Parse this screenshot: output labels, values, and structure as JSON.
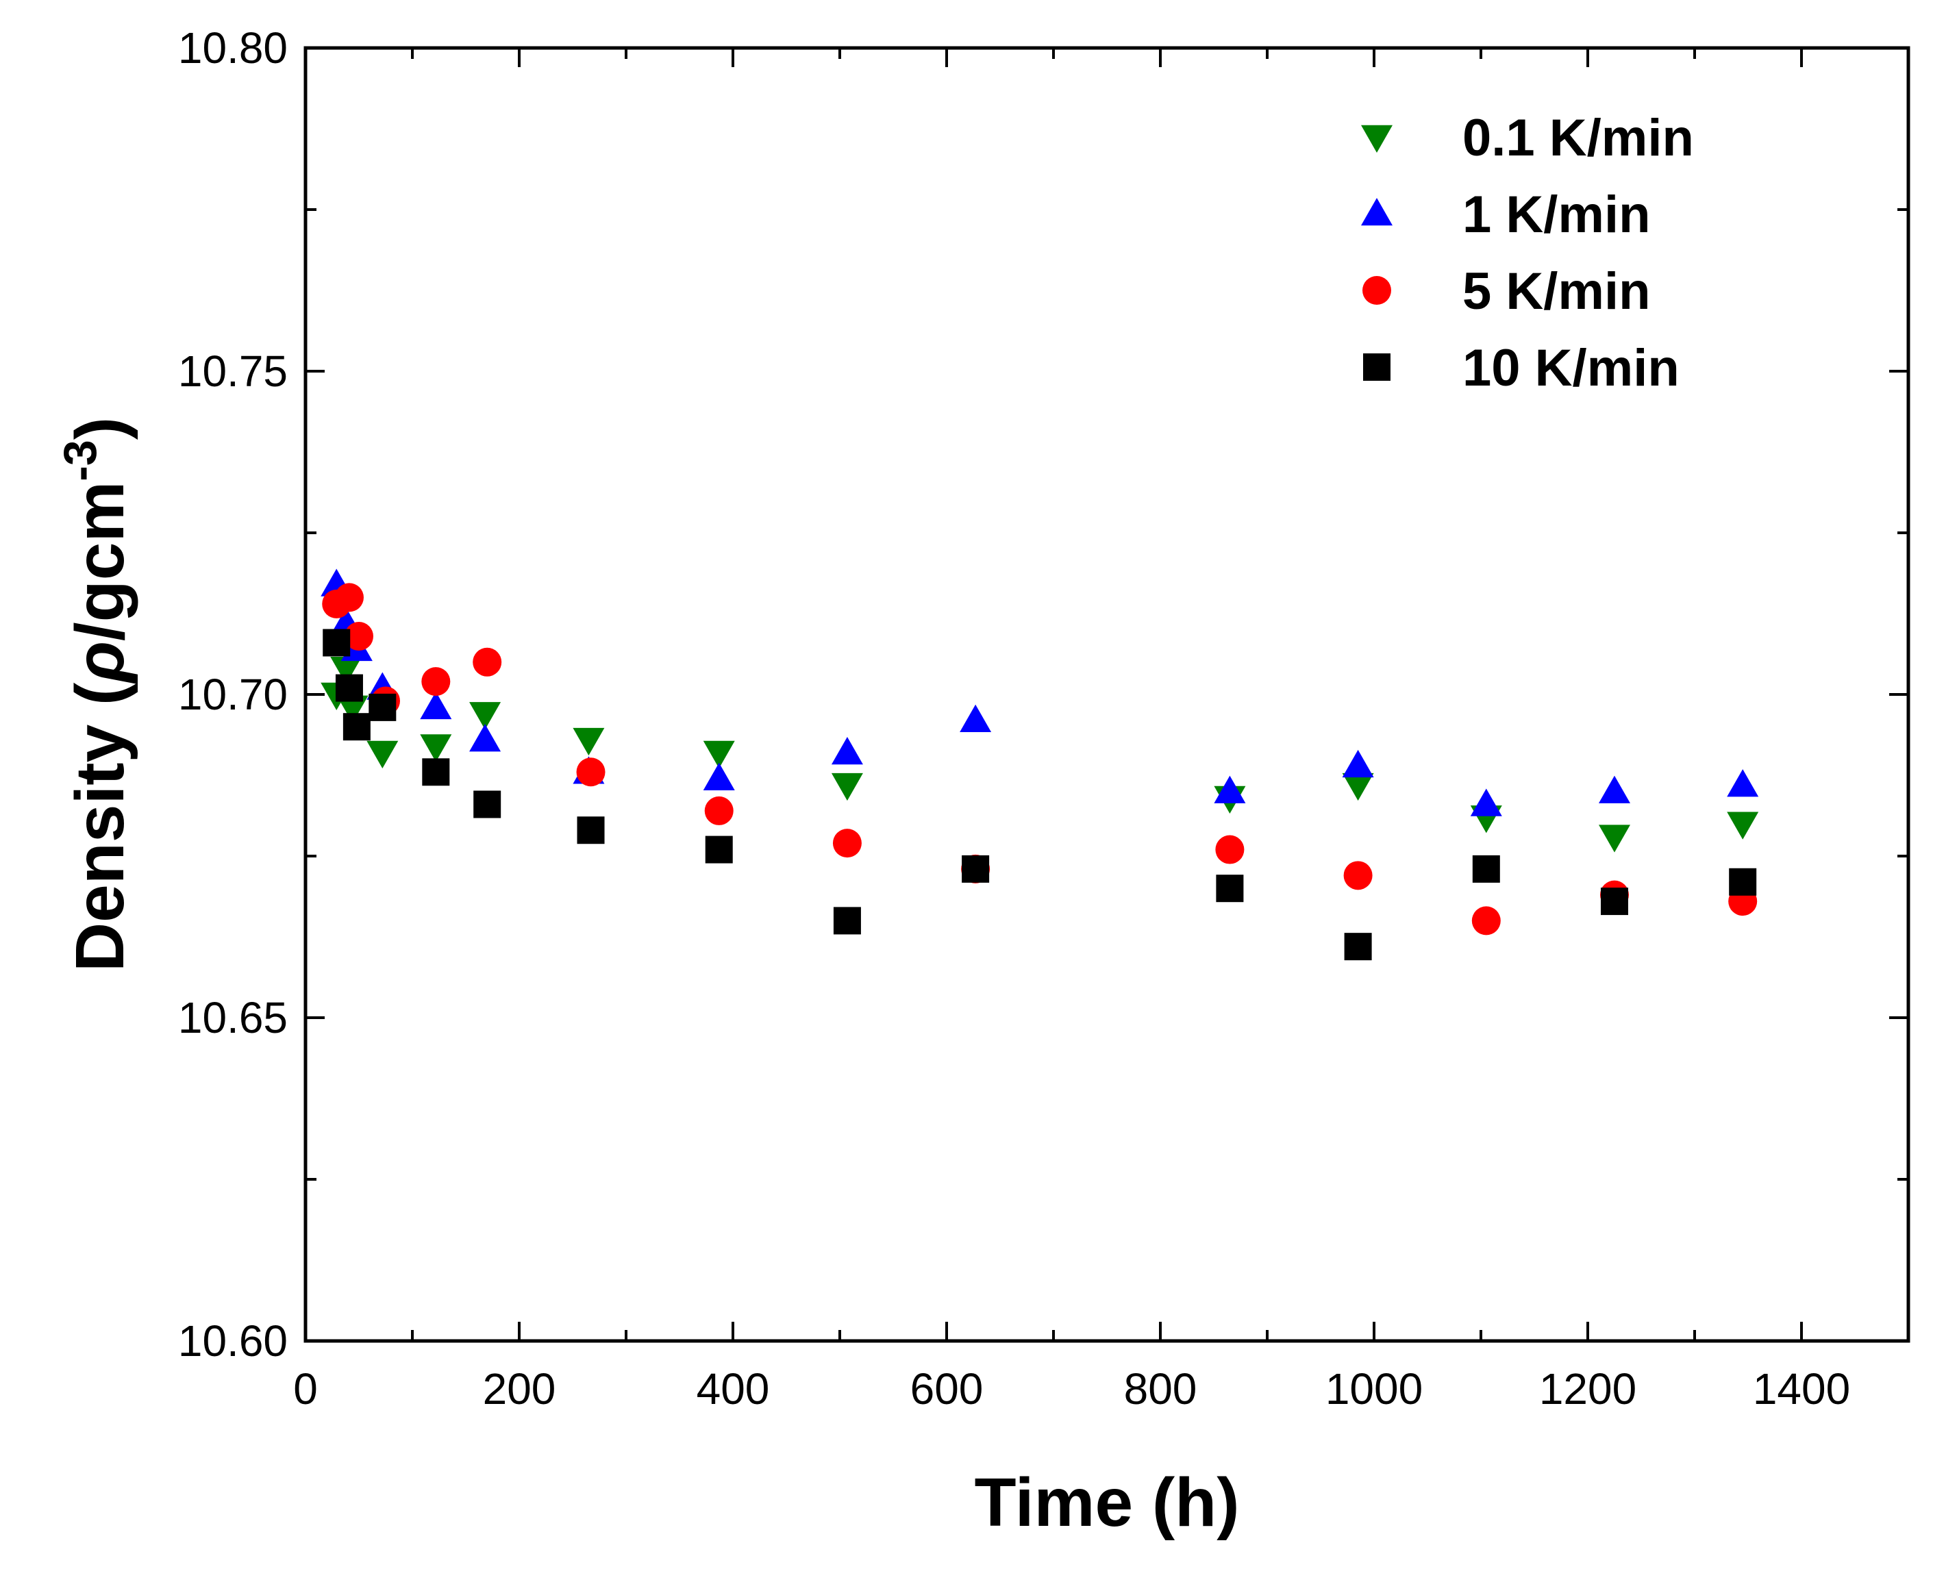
{
  "chart_data": {
    "type": "scatter",
    "title": "",
    "xlabel": "Time (h)",
    "ylabel_prefix": "Density (",
    "ylabel_symbol": "ρ",
    "ylabel_unit": "/gcm",
    "ylabel_exp": "-3",
    "ylabel_suffix": ")",
    "xlim": [
      0,
      1500
    ],
    "ylim": [
      10.6,
      10.8
    ],
    "x_ticks": [
      0,
      200,
      400,
      600,
      800,
      1000,
      1200,
      1400
    ],
    "x_tick_labels": [
      "0",
      "200",
      "400",
      "600",
      "800",
      "1000",
      "1200",
      "1400"
    ],
    "y_ticks": [
      10.6,
      10.65,
      10.7,
      10.75,
      10.8
    ],
    "y_tick_labels": [
      "10.60",
      "10.65",
      "10.70",
      "10.75",
      "10.80"
    ],
    "grid": false,
    "legend_position": "top-right",
    "series": [
      {
        "name": "0.1 K/min",
        "marker": "triangle-down",
        "color": "#008000",
        "x": [
          29,
          38,
          44,
          72,
          122,
          168,
          265,
          387,
          507,
          865,
          985,
          1105,
          1225,
          1345
        ],
        "y": [
          10.7,
          10.704,
          10.698,
          10.691,
          10.692,
          10.697,
          10.693,
          10.691,
          10.686,
          10.684,
          10.686,
          10.681,
          10.678,
          10.68
        ]
      },
      {
        "name": "1 K/min",
        "marker": "triangle-up",
        "color": "#0000ff",
        "x": [
          29,
          38,
          48,
          72,
          122,
          168,
          265,
          387,
          507,
          627,
          865,
          985,
          1105,
          1225,
          1345
        ],
        "y": [
          10.717,
          10.711,
          10.707,
          10.701,
          10.698,
          10.693,
          10.688,
          10.687,
          10.691,
          10.696,
          10.685,
          10.689,
          10.683,
          10.685,
          10.686
        ]
      },
      {
        "name": "5 K/min",
        "marker": "circle",
        "color": "#ff0000",
        "x": [
          29,
          41,
          50,
          75,
          122,
          170,
          267,
          387,
          507,
          627,
          865,
          985,
          1105,
          1225,
          1345
        ],
        "y": [
          10.714,
          10.715,
          10.709,
          10.699,
          10.702,
          10.705,
          10.688,
          10.682,
          10.677,
          10.673,
          10.676,
          10.672,
          10.665,
          10.669,
          10.668
        ]
      },
      {
        "name": "10 K/min",
        "marker": "square",
        "color": "#000000",
        "x": [
          29,
          41,
          48,
          72,
          122,
          170,
          267,
          387,
          507,
          627,
          865,
          985,
          1105,
          1225,
          1345
        ],
        "y": [
          10.708,
          10.701,
          10.695,
          10.698,
          10.688,
          10.683,
          10.679,
          10.676,
          10.665,
          10.673,
          10.67,
          10.661,
          10.673,
          10.668,
          10.671
        ]
      }
    ]
  }
}
